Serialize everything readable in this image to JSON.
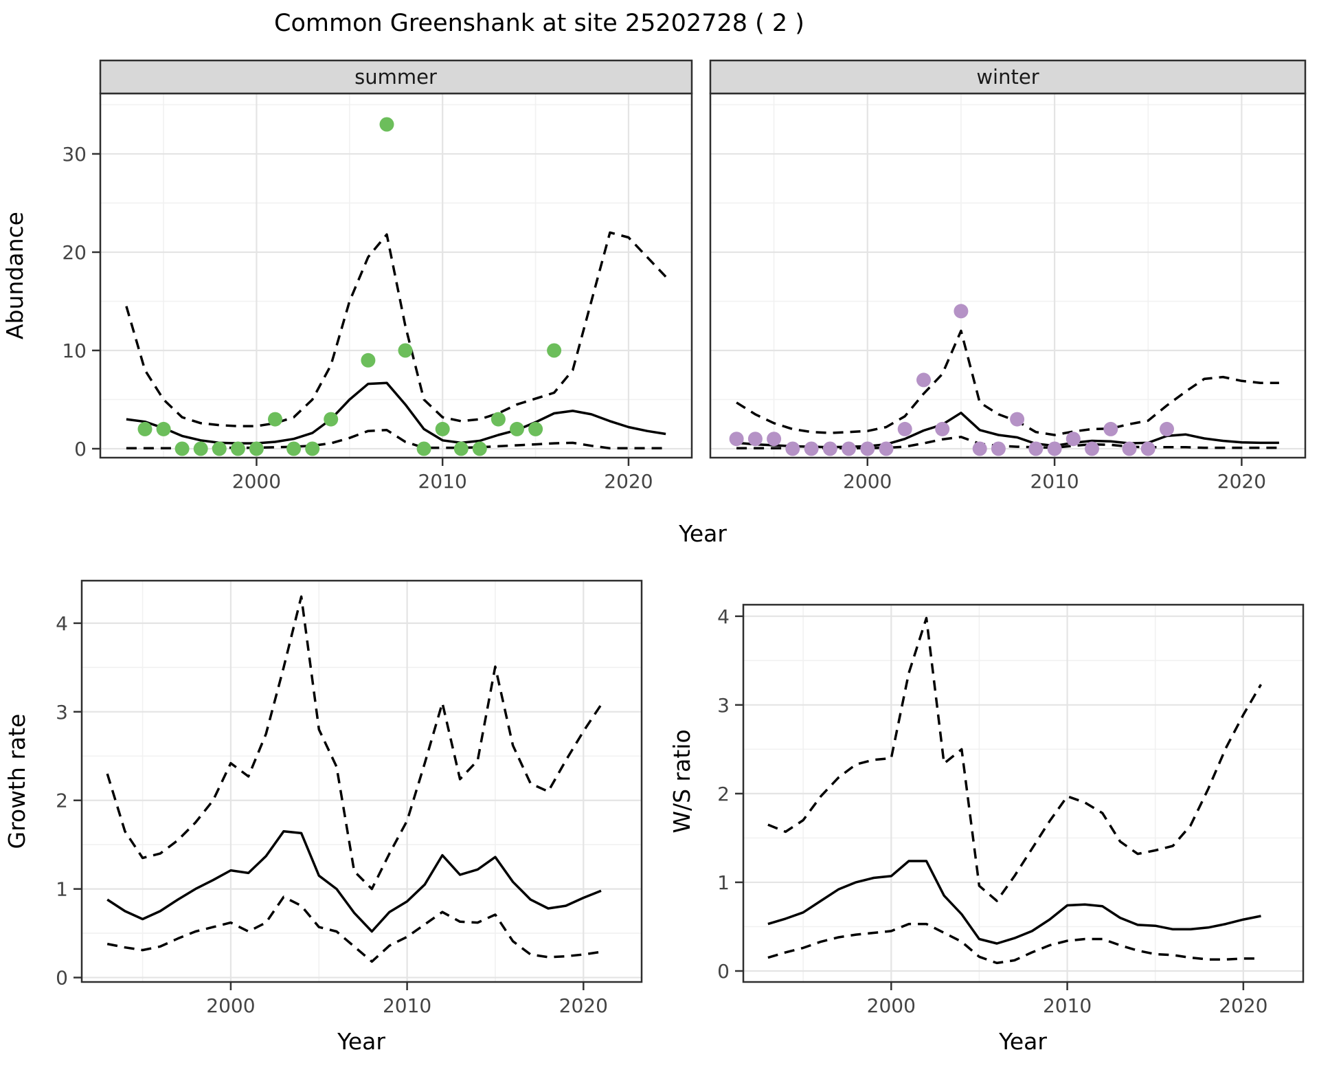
{
  "title": "Common Greenshank at site 25202728 ( 2 )",
  "labels": {
    "year": "Year",
    "abundance": "Abundance",
    "growth_rate": "Growth rate",
    "ws_ratio": "W/S ratio"
  },
  "colors": {
    "summer_point": "#6CBE5B",
    "winter_point": "#B592C6",
    "line": "#000000",
    "strip_fill": "#D8D8D8",
    "panel_border": "#2E2E2E",
    "grid_major": "#E4E4E4",
    "grid_minor": "#F1F1F1",
    "tick_mark": "#333333",
    "tick_label": "#444444",
    "background": "#FFFFFF"
  },
  "chart_data": [
    {
      "id": "abundance-summer",
      "type": "line",
      "facet_label": "summer",
      "xlabel": "Year",
      "ylabel": "Abundance",
      "xlim": [
        1991.6,
        2023.4
      ],
      "ylim": [
        -0.91,
        36.15
      ],
      "x_ticks": [
        2000,
        2010,
        2020
      ],
      "y_ticks": [
        0,
        10,
        20,
        30
      ],
      "x_minor": [
        1995,
        2005,
        2015
      ],
      "y_minor": [
        5,
        15,
        25,
        35
      ],
      "show_y_tick_labels": true,
      "grid": true,
      "legend": "none",
      "x": [
        1993,
        1994,
        1995,
        1996,
        1997,
        1998,
        1999,
        2000,
        2001,
        2002,
        2003,
        2004,
        2005,
        2006,
        2007,
        2008,
        2009,
        2010,
        2011,
        2012,
        2013,
        2014,
        2015,
        2016,
        2017,
        2018,
        2019,
        2020,
        2021,
        2022
      ],
      "series": [
        {
          "name": "fitted",
          "style": "solid",
          "values": [
            3.0,
            2.75,
            2.1,
            1.3,
            0.85,
            0.6,
            0.55,
            0.55,
            0.7,
            1.0,
            1.6,
            3.0,
            5.0,
            6.6,
            6.7,
            4.5,
            2.0,
            0.85,
            0.6,
            0.8,
            1.4,
            1.9,
            2.7,
            3.6,
            3.85,
            3.5,
            2.8,
            2.2,
            1.8,
            1.5
          ]
        },
        {
          "name": "upper_95ci",
          "style": "dashed",
          "values": [
            14.5,
            8.0,
            5.0,
            3.2,
            2.6,
            2.4,
            2.3,
            2.3,
            2.6,
            3.2,
            5.0,
            8.5,
            15.0,
            19.5,
            21.8,
            12.5,
            5.0,
            3.2,
            2.8,
            3.0,
            3.6,
            4.5,
            5.1,
            5.7,
            8.0,
            15.0,
            22.0,
            21.5,
            19.5,
            17.5
          ]
        },
        {
          "name": "lower_95ci",
          "style": "dashed",
          "values": [
            0.05,
            0.05,
            0.05,
            0.05,
            0.1,
            0.1,
            0.1,
            0.1,
            0.15,
            0.2,
            0.3,
            0.55,
            1.1,
            1.8,
            1.9,
            0.7,
            0.1,
            0.1,
            0.1,
            0.15,
            0.25,
            0.35,
            0.45,
            0.55,
            0.6,
            0.3,
            0.05,
            0.05,
            0.05,
            0.05
          ]
        }
      ],
      "points": {
        "name": "observed",
        "color_key": "summer_point",
        "x": [
          1994,
          1995,
          1996,
          1997,
          1998,
          1999,
          2000,
          2001,
          2002,
          2003,
          2004,
          2006,
          2007,
          2008,
          2009,
          2010,
          2011,
          2012,
          2013,
          2014,
          2015,
          2016
        ],
        "y": [
          2,
          2,
          0,
          0,
          0,
          0,
          0,
          3,
          0,
          0,
          3,
          9,
          33,
          10,
          0,
          2,
          0,
          0,
          3,
          2,
          2,
          10
        ]
      }
    },
    {
      "id": "abundance-winter",
      "type": "line",
      "facet_label": "winter",
      "xlabel": "Year",
      "ylabel": "Abundance",
      "xlim": [
        1991.6,
        2023.4
      ],
      "ylim": [
        -0.91,
        36.15
      ],
      "x_ticks": [
        2000,
        2010,
        2020
      ],
      "y_ticks": [
        0,
        10,
        20,
        30
      ],
      "x_minor": [
        1995,
        2005,
        2015
      ],
      "y_minor": [
        5,
        15,
        25,
        35
      ],
      "show_y_tick_labels": false,
      "grid": true,
      "legend": "none",
      "x": [
        1993,
        1994,
        1995,
        1996,
        1997,
        1998,
        1999,
        2000,
        2001,
        2002,
        2003,
        2004,
        2005,
        2006,
        2007,
        2008,
        2009,
        2010,
        2011,
        2012,
        2013,
        2014,
        2015,
        2016,
        2017,
        2018,
        2019,
        2020,
        2021,
        2022
      ],
      "series": [
        {
          "name": "fitted",
          "style": "solid",
          "values": [
            0.6,
            0.45,
            0.35,
            0.25,
            0.2,
            0.15,
            0.2,
            0.25,
            0.45,
            1.0,
            1.85,
            2.45,
            3.65,
            1.9,
            1.4,
            1.15,
            0.5,
            0.3,
            0.6,
            0.8,
            0.75,
            0.55,
            0.6,
            1.3,
            1.45,
            1.05,
            0.8,
            0.65,
            0.6,
            0.6
          ]
        },
        {
          "name": "upper_95ci",
          "style": "dashed",
          "values": [
            4.7,
            3.5,
            2.6,
            2.0,
            1.7,
            1.6,
            1.7,
            1.8,
            2.2,
            3.3,
            5.6,
            7.6,
            12.0,
            4.7,
            3.5,
            2.8,
            1.7,
            1.4,
            1.75,
            2.0,
            2.05,
            2.5,
            2.85,
            4.4,
            5.8,
            7.1,
            7.3,
            6.9,
            6.7,
            6.7
          ]
        },
        {
          "name": "lower_95ci",
          "style": "dashed",
          "values": [
            0.05,
            0.05,
            0.05,
            0.05,
            0.05,
            0.05,
            0.05,
            0.05,
            0.1,
            0.2,
            0.55,
            0.95,
            1.2,
            0.5,
            0.3,
            0.2,
            0.15,
            0.1,
            0.3,
            0.45,
            0.4,
            0.2,
            0.15,
            0.15,
            0.15,
            0.1,
            0.1,
            0.1,
            0.1,
            0.1
          ]
        }
      ],
      "points": {
        "name": "observed",
        "color_key": "winter_point",
        "x": [
          1993,
          1994,
          1995,
          1996,
          1997,
          1998,
          1999,
          2000,
          2001,
          2002,
          2003,
          2004,
          2005,
          2006,
          2007,
          2008,
          2009,
          2010,
          2011,
          2012,
          2013,
          2014,
          2015,
          2016
        ],
        "y": [
          1,
          1,
          1,
          0,
          0,
          0,
          0,
          0,
          0,
          2,
          7,
          2,
          14,
          0,
          0,
          3,
          0,
          0,
          1,
          0,
          2,
          0,
          0,
          2
        ]
      }
    },
    {
      "id": "growth-rate",
      "type": "line",
      "facet_label": "",
      "xlabel": "Year",
      "ylabel": "Growth rate",
      "xlim": [
        1991.55,
        2023.3
      ],
      "ylim": [
        -0.05,
        4.48
      ],
      "x_ticks": [
        2000,
        2010,
        2020
      ],
      "y_ticks": [
        0,
        1,
        2,
        3,
        4
      ],
      "x_minor": [
        1995,
        2005,
        2015
      ],
      "y_minor": [
        0.5,
        1.5,
        2.5,
        3.5
      ],
      "show_y_tick_labels": true,
      "grid": true,
      "legend": "none",
      "x": [
        1993,
        1994,
        1995,
        1996,
        1997,
        1998,
        1999,
        2000,
        2001,
        2002,
        2003,
        2004,
        2005,
        2006,
        2007,
        2008,
        2009,
        2010,
        2011,
        2012,
        2013,
        2014,
        2015,
        2016,
        2017,
        2018,
        2019,
        2020,
        2021
      ],
      "series": [
        {
          "name": "fitted",
          "style": "solid",
          "values": [
            0.88,
            0.75,
            0.66,
            0.75,
            0.88,
            1.0,
            1.1,
            1.21,
            1.18,
            1.37,
            1.65,
            1.63,
            1.15,
            1.0,
            0.73,
            0.52,
            0.74,
            0.86,
            1.05,
            1.38,
            1.16,
            1.22,
            1.36,
            1.08,
            0.88,
            0.78,
            0.81,
            0.9,
            0.98
          ]
        },
        {
          "name": "upper_95ci",
          "style": "dashed",
          "values": [
            2.3,
            1.65,
            1.35,
            1.4,
            1.55,
            1.75,
            2.0,
            2.42,
            2.27,
            2.75,
            3.5,
            4.3,
            2.8,
            2.38,
            1.2,
            1.0,
            1.4,
            1.77,
            2.42,
            3.1,
            2.24,
            2.45,
            3.51,
            2.62,
            2.19,
            2.1,
            2.45,
            2.78,
            3.08
          ]
        },
        {
          "name": "lower_95ci",
          "style": "dashed",
          "values": [
            0.38,
            0.34,
            0.31,
            0.35,
            0.44,
            0.52,
            0.57,
            0.62,
            0.52,
            0.62,
            0.91,
            0.81,
            0.57,
            0.52,
            0.35,
            0.18,
            0.36,
            0.46,
            0.6,
            0.74,
            0.63,
            0.62,
            0.71,
            0.41,
            0.26,
            0.23,
            0.24,
            0.26,
            0.29
          ]
        }
      ],
      "points": null
    },
    {
      "id": "ws-ratio",
      "type": "line",
      "facet_label": "",
      "xlabel": "Year",
      "ylabel": "W/S ratio",
      "xlim": [
        1991.6,
        2023.4
      ],
      "ylim": [
        -0.124,
        4.13
      ],
      "x_ticks": [
        2000,
        2010,
        2020
      ],
      "y_ticks": [
        0,
        1,
        2,
        3,
        4
      ],
      "x_minor": [
        1995,
        2005,
        2015
      ],
      "y_minor": [
        0.5,
        1.5,
        2.5,
        3.5
      ],
      "show_y_tick_labels": true,
      "grid": true,
      "legend": "none",
      "x": [
        1993,
        1994,
        1995,
        1996,
        1997,
        1998,
        1999,
        2000,
        2001,
        2002,
        2003,
        2004,
        2005,
        2006,
        2007,
        2008,
        2009,
        2010,
        2011,
        2012,
        2013,
        2014,
        2015,
        2016,
        2017,
        2018,
        2019,
        2020,
        2021
      ],
      "series": [
        {
          "name": "fitted",
          "style": "solid",
          "values": [
            0.53,
            0.59,
            0.66,
            0.79,
            0.92,
            1.0,
            1.05,
            1.07,
            1.24,
            1.24,
            0.85,
            0.64,
            0.36,
            0.31,
            0.37,
            0.45,
            0.58,
            0.74,
            0.75,
            0.73,
            0.6,
            0.52,
            0.51,
            0.47,
            0.47,
            0.49,
            0.53,
            0.58,
            0.62
          ]
        },
        {
          "name": "upper_95ci",
          "style": "dashed",
          "values": [
            1.65,
            1.57,
            1.7,
            1.97,
            2.18,
            2.33,
            2.38,
            2.4,
            3.36,
            3.98,
            2.34,
            2.5,
            0.96,
            0.79,
            1.07,
            1.38,
            1.69,
            1.97,
            1.9,
            1.78,
            1.46,
            1.32,
            1.36,
            1.41,
            1.64,
            2.05,
            2.51,
            2.89,
            3.23
          ]
        },
        {
          "name": "lower_95ci",
          "style": "dashed",
          "values": [
            0.15,
            0.21,
            0.26,
            0.33,
            0.38,
            0.41,
            0.43,
            0.45,
            0.53,
            0.53,
            0.43,
            0.33,
            0.16,
            0.09,
            0.12,
            0.21,
            0.29,
            0.34,
            0.36,
            0.36,
            0.29,
            0.23,
            0.19,
            0.18,
            0.15,
            0.13,
            0.13,
            0.14,
            0.14
          ]
        }
      ],
      "points": null
    }
  ]
}
